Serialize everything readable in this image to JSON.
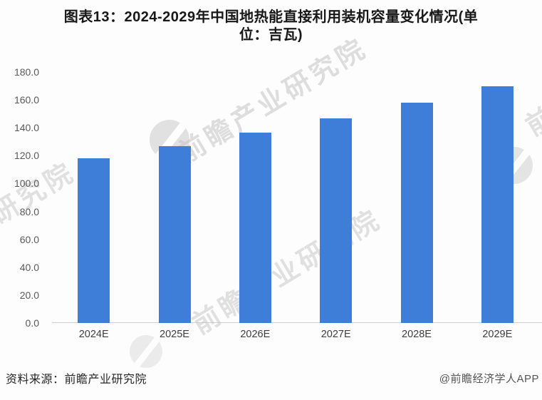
{
  "title": {
    "line1": "图表13：2024-2029年中国地热能直接利用装机容量变化情况(单",
    "line2": "位：吉瓦)"
  },
  "chart_data": {
    "type": "bar",
    "title": "图表13：2024-2029年中国地热能直接利用装机容量变化情况(单位：吉瓦)",
    "unit": "吉瓦",
    "categories": [
      "2024E",
      "2025E",
      "2026E",
      "2027E",
      "2028E",
      "2029E"
    ],
    "values": [
      118,
      127,
      136.5,
      147,
      158,
      170
    ],
    "xlabel": "",
    "ylabel": "",
    "ylim": [
      0,
      180
    ],
    "ytick_step": 20,
    "yticks": [
      "180.0",
      "160.0",
      "140.0",
      "120.0",
      "100.0",
      "80.0",
      "60.0",
      "40.0",
      "20.0",
      "0.0"
    ],
    "grid": false,
    "legend_position": "none",
    "bar_color": "#3f7ed8"
  },
  "watermarks": {
    "text": "前瞻产业研究院"
  },
  "footer": {
    "source": "资料来源：前瞻产业研究院",
    "credit": "@前瞻经济学人APP"
  }
}
